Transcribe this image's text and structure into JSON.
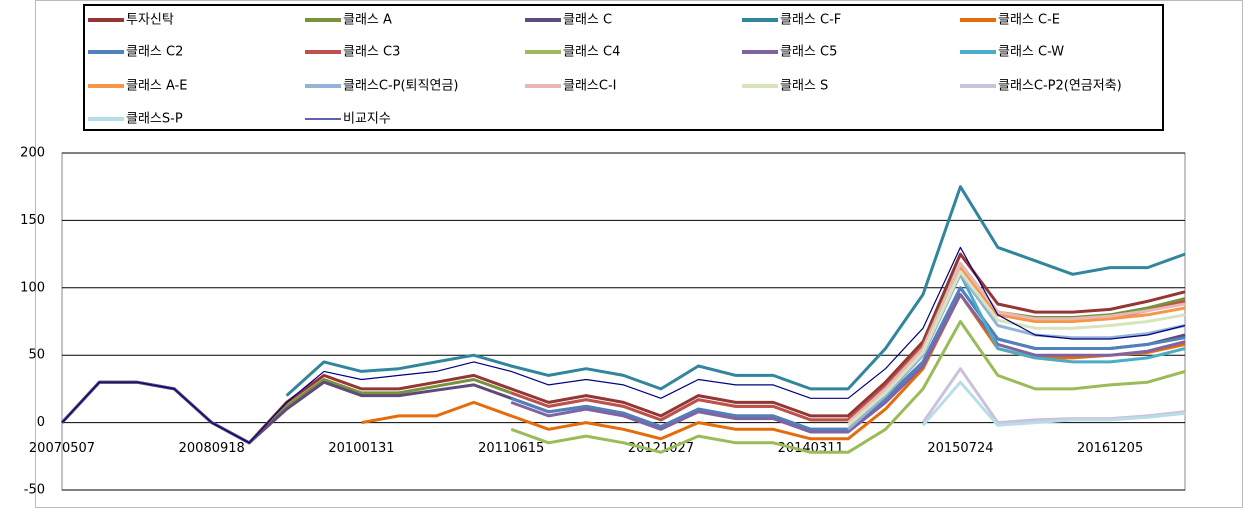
{
  "chart_data": {
    "type": "line",
    "categories": [
      "20070507",
      null,
      null,
      null,
      "20080918",
      null,
      null,
      null,
      "20100131",
      null,
      null,
      null,
      "20110615",
      null,
      null,
      null,
      "20121027",
      null,
      null,
      null,
      "20140311",
      null,
      null,
      null,
      "20150724",
      null,
      null,
      null,
      "20161205",
      null,
      null
    ],
    "ylim": [
      -50,
      200
    ],
    "yticks": [
      200,
      150,
      100,
      50,
      0,
      -50
    ],
    "grid": true,
    "series": [
      {
        "name": "투자신탁",
        "color": "#943634",
        "values": [
          0,
          30,
          30,
          25,
          0,
          -15,
          15,
          35,
          25,
          25,
          30,
          35,
          25,
          15,
          20,
          15,
          5,
          20,
          15,
          15,
          5,
          5,
          30,
          60,
          125,
          88,
          82,
          82,
          84,
          90,
          97
        ]
      },
      {
        "name": "클래스 A",
        "color": "#77933c",
        "values": [
          0,
          30,
          30,
          25,
          0,
          -15,
          12,
          32,
          22,
          22,
          27,
          32,
          22,
          12,
          17,
          12,
          2,
          17,
          12,
          12,
          2,
          2,
          27,
          57,
          118,
          82,
          78,
          78,
          80,
          85,
          92
        ]
      },
      {
        "name": "클래스 C",
        "color": "#604a7b",
        "values": [
          0,
          30,
          30,
          25,
          0,
          -15,
          10,
          30,
          20,
          20,
          24,
          28,
          18,
          8,
          12,
          7,
          -3,
          10,
          5,
          5,
          -5,
          -5,
          18,
          45,
          100,
          62,
          55,
          55,
          55,
          58,
          65
        ]
      },
      {
        "name": "클래스 C-F",
        "color": "#31859c",
        "values": [
          null,
          null,
          null,
          null,
          null,
          null,
          20,
          45,
          38,
          40,
          45,
          50,
          42,
          35,
          40,
          35,
          25,
          42,
          35,
          35,
          25,
          25,
          55,
          95,
          175,
          130,
          120,
          110,
          115,
          115,
          125
        ]
      },
      {
        "name": "클래스 C-E",
        "color": "#e46c0a",
        "values": [
          null,
          null,
          null,
          null,
          null,
          null,
          null,
          null,
          0,
          5,
          5,
          15,
          5,
          -5,
          0,
          -5,
          -12,
          0,
          -5,
          -5,
          -12,
          -12,
          10,
          40,
          95,
          55,
          48,
          48,
          50,
          52,
          58
        ]
      },
      {
        "name": "클래스 C2",
        "color": "#4f81bd",
        "values": [
          null,
          null,
          null,
          null,
          null,
          null,
          null,
          null,
          null,
          null,
          null,
          null,
          18,
          8,
          12,
          7,
          -3,
          10,
          5,
          5,
          -5,
          -5,
          18,
          45,
          100,
          62,
          55,
          55,
          55,
          58,
          63
        ]
      },
      {
        "name": "클래스 C3",
        "color": "#c0504d",
        "values": [
          null,
          null,
          null,
          null,
          null,
          null,
          null,
          null,
          null,
          null,
          null,
          null,
          22,
          12,
          17,
          12,
          2,
          17,
          12,
          12,
          2,
          2,
          27,
          57,
          115,
          80,
          76,
          76,
          78,
          83,
          90
        ]
      },
      {
        "name": "클래스 C4",
        "color": "#9bbb59",
        "values": [
          null,
          null,
          null,
          null,
          null,
          null,
          null,
          null,
          null,
          null,
          null,
          null,
          -5,
          -15,
          -10,
          -15,
          -22,
          -10,
          -15,
          -15,
          -22,
          -22,
          -5,
          25,
          75,
          35,
          25,
          25,
          28,
          30,
          38
        ]
      },
      {
        "name": "클래스 C5",
        "color": "#8064a2",
        "values": [
          null,
          null,
          null,
          null,
          null,
          null,
          null,
          null,
          null,
          null,
          null,
          null,
          15,
          5,
          10,
          5,
          -5,
          8,
          3,
          3,
          -7,
          -7,
          15,
          42,
          95,
          58,
          50,
          50,
          50,
          53,
          60
        ]
      },
      {
        "name": "클래스 C-W",
        "color": "#4bacc6",
        "values": [
          null,
          null,
          null,
          null,
          null,
          null,
          null,
          null,
          null,
          null,
          null,
          null,
          null,
          null,
          null,
          null,
          null,
          null,
          null,
          null,
          null,
          -5,
          20,
          55,
          110,
          55,
          48,
          45,
          45,
          48,
          55
        ]
      },
      {
        "name": "클래스 A-E",
        "color": "#f79646",
        "values": [
          null,
          null,
          null,
          null,
          null,
          null,
          null,
          null,
          null,
          null,
          null,
          null,
          null,
          null,
          null,
          null,
          null,
          null,
          null,
          null,
          null,
          0,
          25,
          55,
          115,
          80,
          75,
          75,
          77,
          80,
          85
        ]
      },
      {
        "name": "클래스C-P(퇴직연금)",
        "color": "#95b3d7",
        "values": [
          null,
          null,
          null,
          null,
          null,
          null,
          null,
          null,
          null,
          null,
          null,
          null,
          null,
          null,
          null,
          null,
          null,
          null,
          null,
          null,
          null,
          -5,
          20,
          50,
          110,
          72,
          65,
          63,
          63,
          66,
          72
        ]
      },
      {
        "name": "클래스C-I",
        "color": "#e6b9b8",
        "values": [
          null,
          null,
          null,
          null,
          null,
          null,
          null,
          null,
          null,
          null,
          null,
          null,
          null,
          null,
          null,
          null,
          null,
          null,
          null,
          null,
          null,
          0,
          25,
          55,
          118,
          82,
          77,
          77,
          79,
          83,
          88
        ]
      },
      {
        "name": "클래스 S",
        "color": "#d7e4bd",
        "values": [
          null,
          null,
          null,
          null,
          null,
          null,
          null,
          null,
          null,
          null,
          null,
          null,
          null,
          null,
          null,
          null,
          null,
          null,
          null,
          null,
          null,
          -2,
          22,
          52,
          112,
          76,
          70,
          70,
          72,
          75,
          80
        ]
      },
      {
        "name": "클래스C-P2(연금저축)",
        "color": "#ccc1da",
        "values": [
          null,
          null,
          null,
          null,
          null,
          null,
          null,
          null,
          null,
          null,
          null,
          null,
          null,
          null,
          null,
          null,
          null,
          null,
          null,
          null,
          null,
          null,
          null,
          0,
          40,
          0,
          2,
          3,
          3,
          5,
          8
        ]
      },
      {
        "name": "클래스S-P",
        "color": "#b7dee8",
        "values": [
          null,
          null,
          null,
          null,
          null,
          null,
          null,
          null,
          null,
          null,
          null,
          null,
          null,
          null,
          null,
          null,
          null,
          null,
          null,
          null,
          null,
          null,
          null,
          -2,
          30,
          -2,
          0,
          2,
          2,
          4,
          7
        ]
      },
      {
        "name": "비교지수",
        "color": "#000080",
        "values": [
          0,
          30,
          30,
          25,
          0,
          -15,
          15,
          38,
          32,
          35,
          38,
          45,
          38,
          28,
          32,
          28,
          18,
          32,
          28,
          28,
          18,
          18,
          40,
          70,
          130,
          80,
          65,
          62,
          62,
          65,
          72
        ]
      }
    ]
  }
}
